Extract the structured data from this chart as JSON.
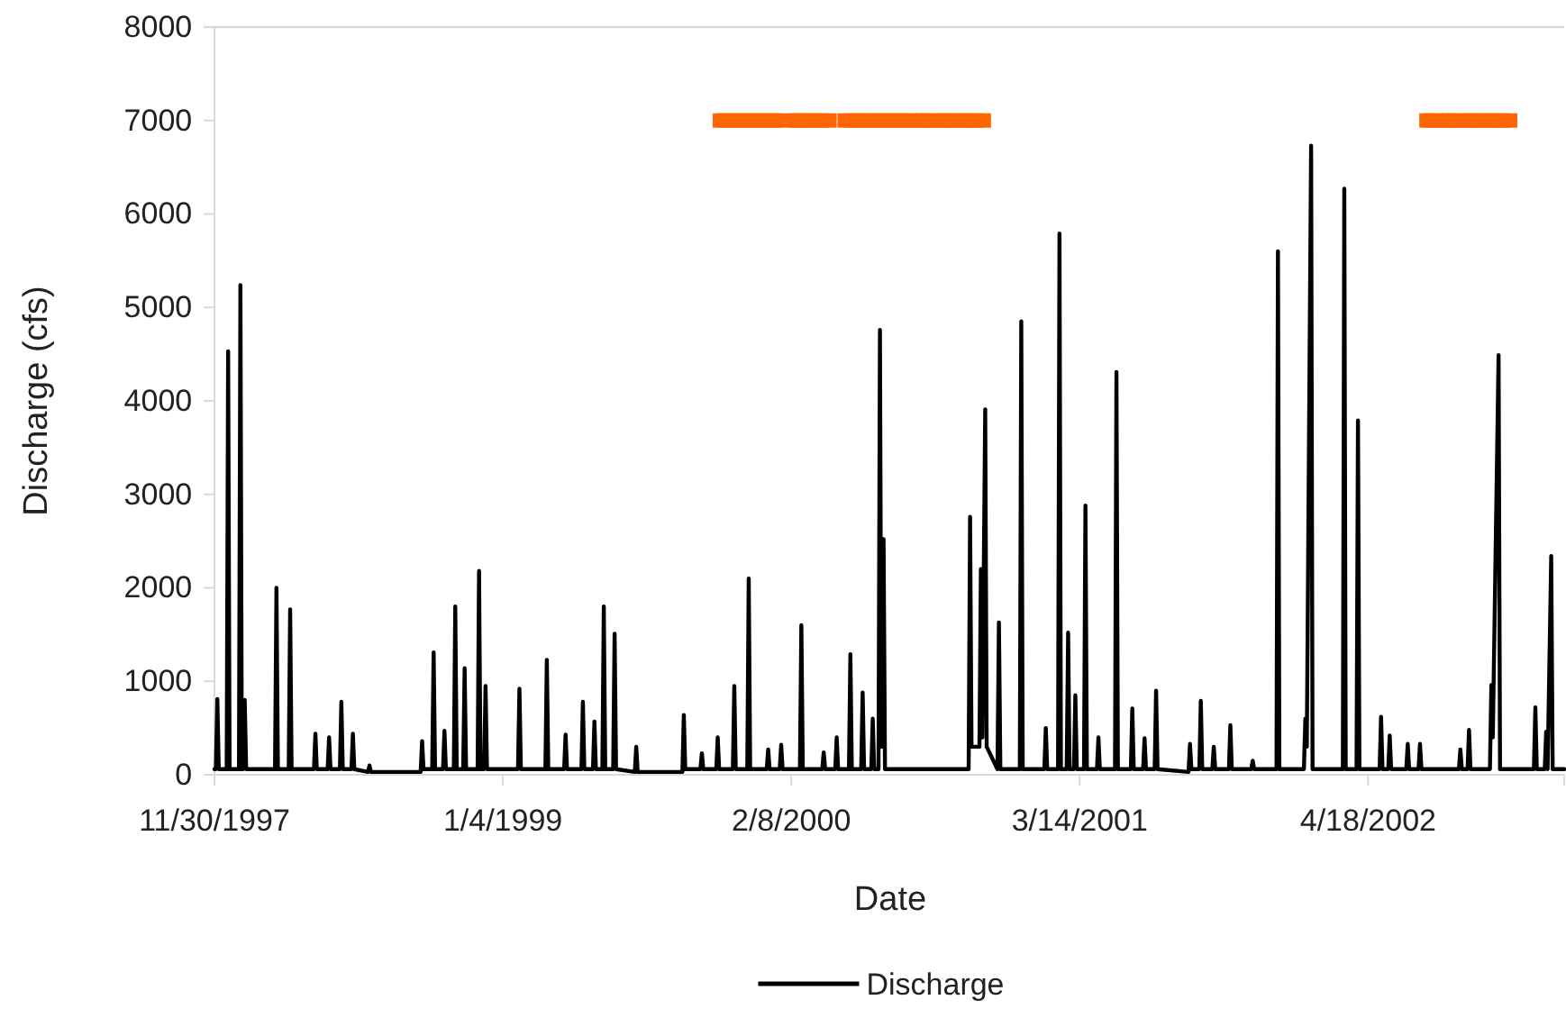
{
  "chart_data": {
    "type": "line",
    "xlabel": "Date",
    "ylabel": "Discharge (cfs)",
    "xlim": [
      "1997-11-30",
      "2003-01-15"
    ],
    "xticks": [
      {
        "value": "1997-11-30",
        "label": "11/30/1997"
      },
      {
        "value": "1999-01-04",
        "label": "1/4/1999"
      },
      {
        "value": "2000-02-08",
        "label": "2/8/2000"
      },
      {
        "value": "2001-03-14",
        "label": "3/14/2001"
      },
      {
        "value": "2002-04-18",
        "label": "4/18/2002"
      }
    ],
    "ylim": [
      0,
      8000
    ],
    "yticks": [
      0,
      1000,
      2000,
      3000,
      4000,
      5000,
      6000,
      7000,
      8000
    ],
    "grid": false,
    "legend": "bottom",
    "series": [
      {
        "name": "Discharge",
        "color": "#000000",
        "marker": "none",
        "line_style": "solid",
        "x": [
          "1997-11-30",
          "1997-12-02",
          "1997-12-04",
          "1997-12-06",
          "1997-12-17",
          "1997-12-19",
          "1997-12-21",
          "1998-01-03",
          "1998-01-05",
          "1998-01-07",
          "1998-01-09",
          "1998-01-11",
          "1998-01-13",
          "1998-02-22",
          "1998-02-24",
          "1998-02-26",
          "1998-03-13",
          "1998-03-15",
          "1998-03-17",
          "1998-04-17",
          "1998-04-19",
          "1998-04-21",
          "1998-05-06",
          "1998-05-08",
          "1998-05-10",
          "1998-05-23",
          "1998-05-25",
          "1998-05-27",
          "1998-06-08",
          "1998-06-10",
          "1998-06-12",
          "1998-07-01",
          "1998-07-03",
          "1998-07-05",
          "1998-09-12",
          "1998-09-14",
          "1998-09-16",
          "1998-09-28",
          "1998-09-30",
          "1998-10-02",
          "1998-10-13",
          "1998-10-15",
          "1998-10-17",
          "1998-10-28",
          "1998-10-30",
          "1998-11-01",
          "1998-11-10",
          "1998-11-12",
          "1998-11-14",
          "1998-11-30",
          "1998-12-02",
          "1998-12-04",
          "1998-12-09",
          "1998-12-11",
          "1998-12-13",
          "1999-01-25",
          "1999-01-27",
          "1999-01-29",
          "1999-03-04",
          "1999-03-06",
          "1999-03-08",
          "1999-03-30",
          "1999-04-01",
          "1999-04-03",
          "1999-04-23",
          "1999-04-25",
          "1999-04-27",
          "1999-05-09",
          "1999-05-11",
          "1999-05-13",
          "1999-05-22",
          "1999-05-24",
          "1999-05-26",
          "1999-06-06",
          "1999-06-08",
          "1999-06-10",
          "1999-07-06",
          "1999-07-08",
          "1999-07-10",
          "1999-09-10",
          "1999-09-12",
          "1999-09-14",
          "1999-10-05",
          "1999-10-07",
          "1999-10-09",
          "1999-10-27",
          "1999-10-29",
          "1999-10-31",
          "1999-11-19",
          "1999-11-21",
          "1999-11-23",
          "1999-12-09",
          "1999-12-11",
          "1999-12-13",
          "2000-01-05",
          "2000-01-07",
          "2000-01-09",
          "2000-01-23",
          "2000-01-25",
          "2000-01-27",
          "2000-02-20",
          "2000-02-22",
          "2000-02-24",
          "2000-03-22",
          "2000-03-24",
          "2000-03-26",
          "2000-04-09",
          "2000-04-11",
          "2000-04-13",
          "2000-04-28",
          "2000-04-30",
          "2000-05-02",
          "2000-05-15",
          "2000-05-17",
          "2000-05-19",
          "2000-05-29",
          "2000-05-31",
          "2000-06-02",
          "2000-06-08",
          "2000-06-10",
          "2000-06-12",
          "2000-06-15",
          "2000-06-17",
          "2000-10-11",
          "2000-10-13",
          "2000-10-15",
          "2000-10-26",
          "2000-10-28",
          "2000-10-30",
          "2000-11-03",
          "2000-11-05",
          "2000-11-20",
          "2000-11-22",
          "2000-11-24",
          "2000-12-21",
          "2000-12-23",
          "2000-12-25",
          "2001-01-24",
          "2001-01-26",
          "2001-01-28",
          "2001-02-12",
          "2001-02-14",
          "2001-02-16",
          "2001-02-24",
          "2001-02-26",
          "2001-02-28",
          "2001-03-06",
          "2001-03-08",
          "2001-03-10",
          "2001-03-20",
          "2001-03-22",
          "2001-03-24",
          "2001-04-07",
          "2001-04-09",
          "2001-04-11",
          "2001-05-02",
          "2001-05-04",
          "2001-05-06",
          "2001-05-24",
          "2001-05-26",
          "2001-05-28",
          "2001-06-10",
          "2001-06-12",
          "2001-06-14",
          "2001-06-26",
          "2001-06-28",
          "2001-06-30",
          "2001-08-12",
          "2001-08-14",
          "2001-08-16",
          "2001-08-27",
          "2001-08-29",
          "2001-08-31",
          "2001-09-14",
          "2001-09-16",
          "2001-09-18",
          "2001-10-07",
          "2001-10-09",
          "2001-10-11",
          "2001-11-07",
          "2001-11-09",
          "2001-11-11",
          "2001-12-12",
          "2001-12-14",
          "2001-12-16",
          "2002-01-19",
          "2002-01-21",
          "2002-01-23",
          "2002-01-29",
          "2002-01-31",
          "2002-03-14",
          "2002-03-16",
          "2002-03-18",
          "2002-04-02",
          "2002-04-04",
          "2002-04-06",
          "2002-05-04",
          "2002-05-06",
          "2002-05-08",
          "2002-05-16",
          "2002-05-18",
          "2002-05-20",
          "2002-06-10",
          "2002-06-12",
          "2002-06-14",
          "2002-06-27",
          "2002-06-29",
          "2002-07-01",
          "2002-08-22",
          "2002-08-24",
          "2002-08-26",
          "2002-09-03",
          "2002-09-05",
          "2002-09-07",
          "2002-10-04",
          "2002-10-06",
          "2002-10-08",
          "2002-10-16",
          "2002-10-18",
          "2002-12-04",
          "2002-12-06",
          "2002-12-08",
          "2002-12-19",
          "2002-12-21",
          "2002-12-23",
          "2002-12-28",
          "2002-12-30",
          "2003-01-15"
        ],
        "values": [
          60,
          60,
          810,
          60,
          60,
          4530,
          60,
          60,
          5240,
          60,
          60,
          800,
          60,
          60,
          2000,
          60,
          60,
          1770,
          60,
          60,
          440,
          60,
          60,
          400,
          60,
          60,
          780,
          60,
          60,
          440,
          60,
          30,
          100,
          30,
          30,
          360,
          60,
          60,
          1310,
          60,
          60,
          470,
          60,
          60,
          1800,
          60,
          60,
          1140,
          60,
          60,
          2180,
          60,
          60,
          950,
          60,
          60,
          920,
          60,
          60,
          1230,
          60,
          60,
          430,
          60,
          60,
          780,
          60,
          60,
          570,
          60,
          60,
          1800,
          60,
          60,
          1510,
          60,
          30,
          300,
          30,
          30,
          640,
          60,
          60,
          230,
          60,
          60,
          400,
          60,
          60,
          950,
          60,
          60,
          2100,
          60,
          60,
          270,
          60,
          60,
          320,
          60,
          60,
          1600,
          60,
          60,
          240,
          60,
          60,
          400,
          60,
          60,
          1290,
          60,
          60,
          880,
          60,
          60,
          600,
          60,
          60,
          4760,
          300,
          2520,
          60,
          60,
          2760,
          300,
          300,
          2200,
          400,
          3910,
          300,
          60,
          1630,
          60,
          60,
          4850,
          60,
          60,
          500,
          60,
          60,
          5790,
          60,
          60,
          1520,
          60,
          60,
          850,
          60,
          60,
          2880,
          60,
          60,
          400,
          60,
          60,
          4310,
          60,
          60,
          710,
          60,
          60,
          390,
          60,
          60,
          900,
          60,
          30,
          330,
          60,
          60,
          790,
          60,
          60,
          300,
          60,
          60,
          530,
          60,
          60,
          150,
          60,
          60,
          5600,
          60,
          60,
          600,
          300,
          6730,
          60,
          60,
          6270,
          60,
          60,
          3790,
          60,
          60,
          620,
          60,
          60,
          420,
          60,
          60,
          330,
          60,
          60,
          330,
          60,
          60,
          270,
          60,
          60,
          480,
          60,
          60,
          960,
          400,
          4490,
          60,
          60,
          720,
          60,
          60,
          460,
          60,
          2340,
          60,
          60
        ]
      },
      {
        "color": "#ff6600",
        "type": "scatter",
        "marker": "square",
        "x": [
          "1999-11-01",
          "1999-11-08",
          "1999-11-15",
          "1999-11-22",
          "1999-12-01",
          "1999-12-08",
          "1999-12-15",
          "1999-12-22",
          "2000-01-01",
          "2000-01-08",
          "2000-01-15",
          "2000-01-22",
          "2000-02-10",
          "2000-02-15",
          "2000-02-22",
          "2000-03-01",
          "2000-03-08",
          "2000-03-15",
          "2000-03-22",
          "2000-04-01",
          "2000-04-22",
          "2000-05-01",
          "2000-05-08",
          "2000-05-15",
          "2000-05-22",
          "2000-06-01",
          "2000-06-08",
          "2000-06-15",
          "2000-06-22",
          "2000-07-01",
          "2000-07-08",
          "2000-07-15",
          "2000-07-22",
          "2000-08-01",
          "2000-08-08",
          "2000-08-15",
          "2000-08-22",
          "2000-09-01",
          "2000-09-08",
          "2000-09-15",
          "2000-09-22",
          "2000-10-01",
          "2000-10-08",
          "2000-10-15",
          "2000-10-22",
          "2000-11-01",
          "2002-07-08",
          "2002-07-15",
          "2002-07-22",
          "2002-08-01",
          "2002-08-08",
          "2002-08-15",
          "2002-08-22",
          "2002-09-01",
          "2002-09-08",
          "2002-09-15",
          "2002-09-22",
          "2002-10-01",
          "2002-10-08",
          "2002-10-15",
          "2002-10-22",
          "2002-11-01"
        ],
        "values": [
          7000,
          7000,
          7000,
          7000,
          7000,
          7000,
          7000,
          7000,
          7000,
          7000,
          7000,
          7000,
          7000,
          7000,
          7000,
          7000,
          7000,
          7000,
          7000,
          7000,
          7000,
          7000,
          7000,
          7000,
          7000,
          7000,
          7000,
          7000,
          7000,
          7000,
          7000,
          7000,
          7000,
          7000,
          7000,
          7000,
          7000,
          7000,
          7000,
          7000,
          7000,
          7000,
          7000,
          7000,
          7000,
          7000,
          7000,
          7000,
          7000,
          7000,
          7000,
          7000,
          7000,
          7000,
          7000,
          7000,
          7000,
          7000,
          7000,
          7000,
          7000,
          7000
        ]
      }
    ]
  }
}
